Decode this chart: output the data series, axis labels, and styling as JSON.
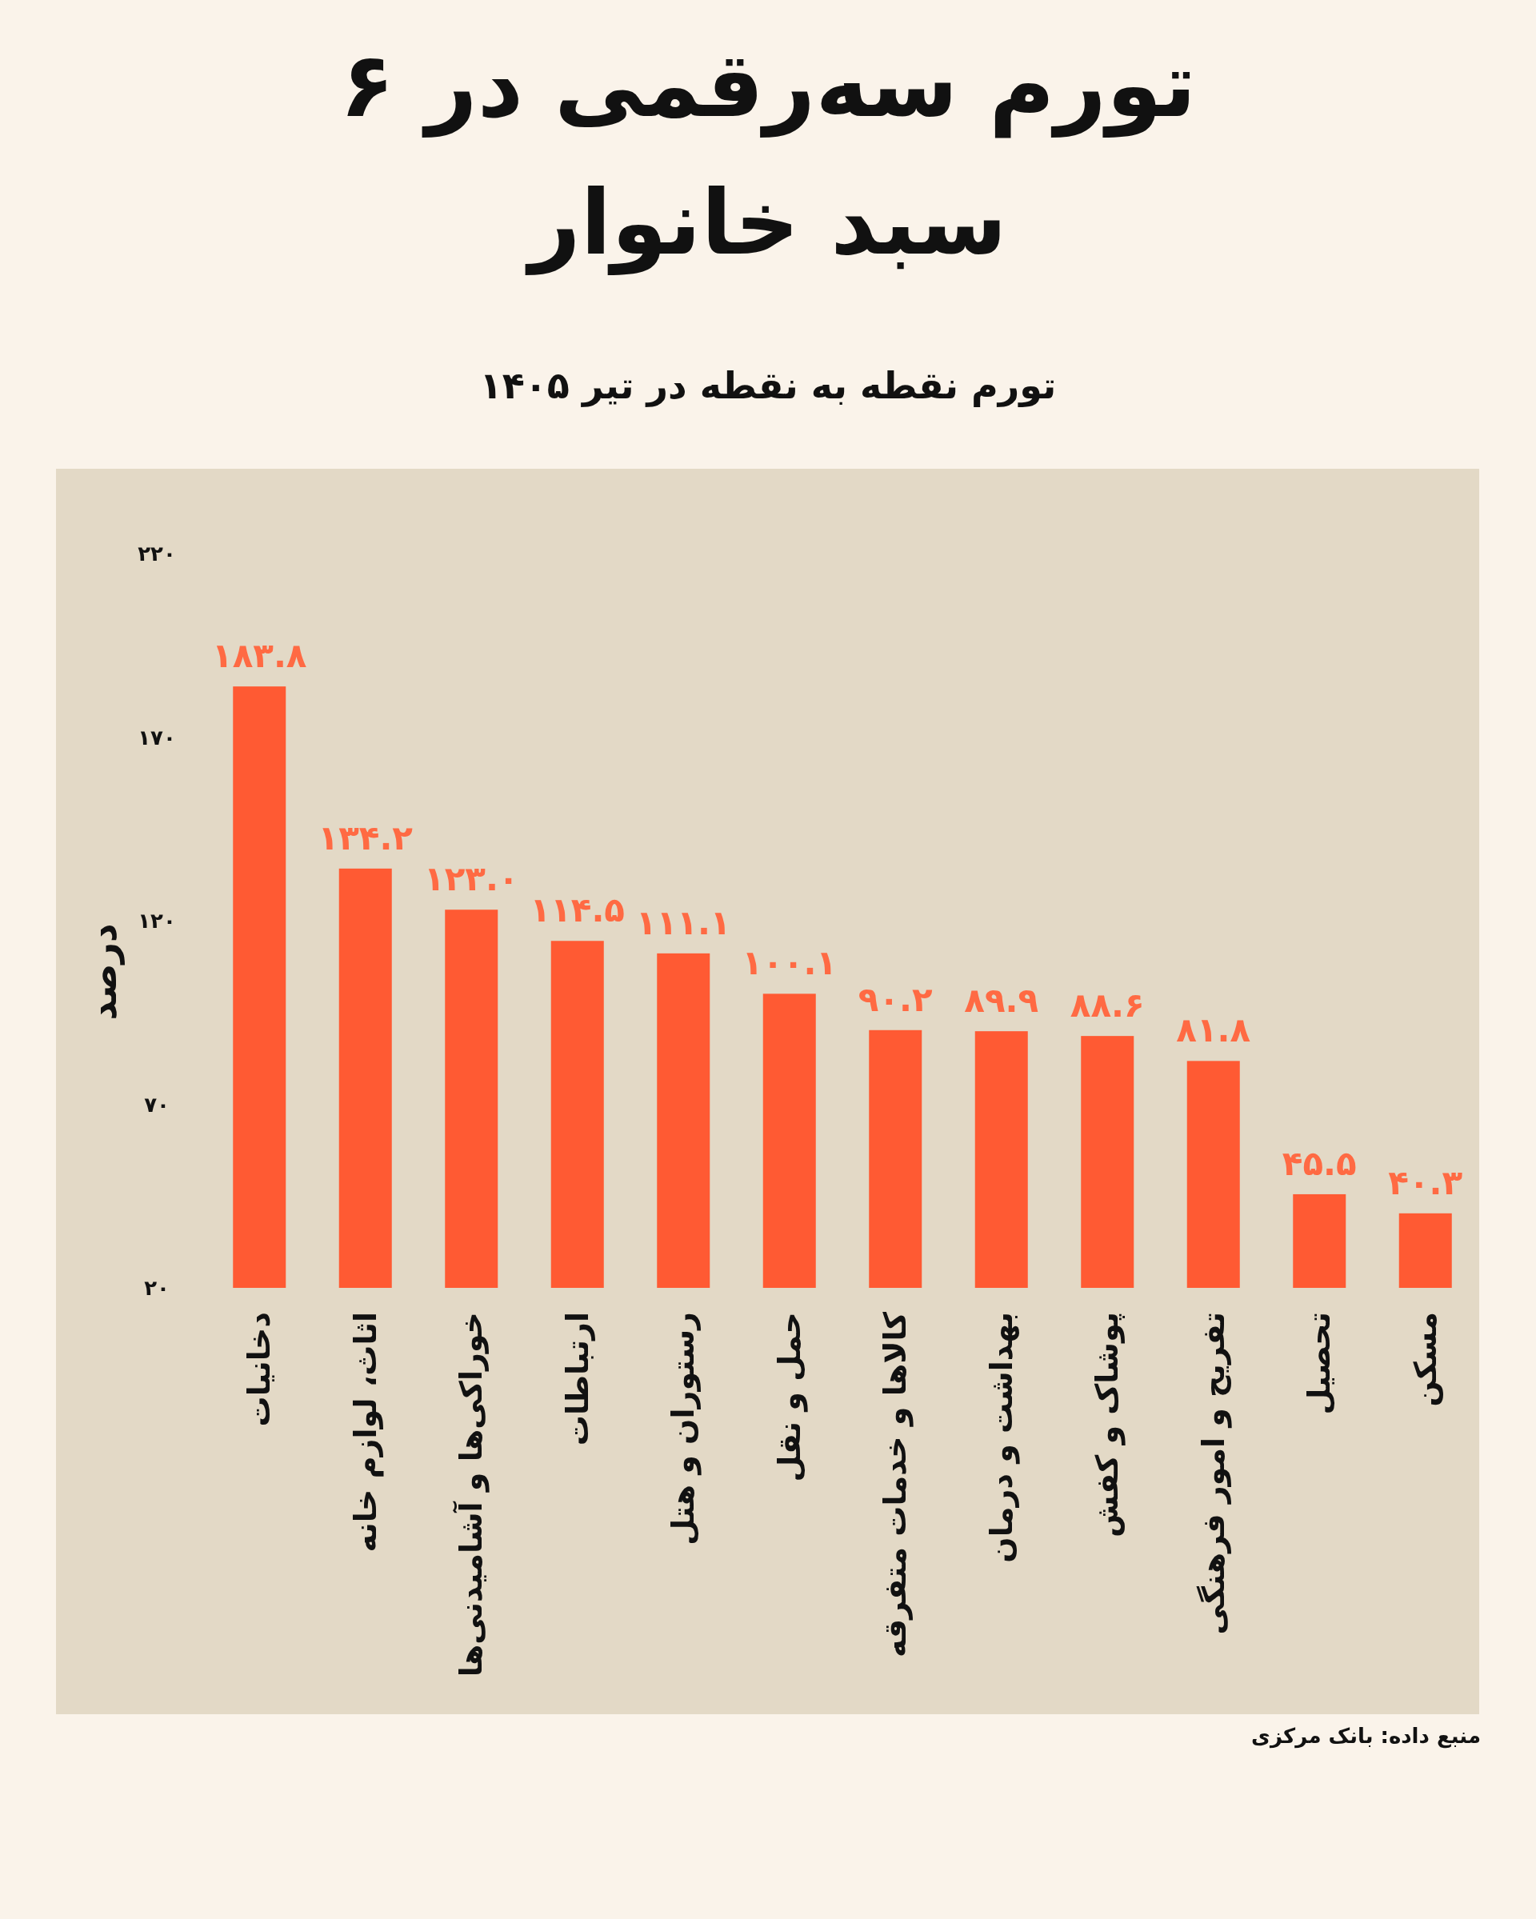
{
  "chart_data": {
    "type": "bar",
    "title": "تورم سه‌رقمی در ۶ سبد خانوار",
    "subtitle": "تورم نقطه به نقطه در تیر ۱۴۰۵",
    "ylabel": "درصد",
    "categories": [
      "دخانیات",
      "اثاث، لوازم خانه",
      "خوراکی‌ها و آشامیدنی‌ها",
      "ارتباطات",
      "رستوران و هتل",
      "حمل و نقل",
      "کالاها و خدمات متفرقه",
      "بهداشت و درمان",
      "پوشاک و کفش",
      "تفریح و امور فرهنگی",
      "تحصیل",
      "مسکن"
    ],
    "values": [
      183.8,
      134.2,
      123.0,
      114.5,
      111.1,
      100.1,
      90.2,
      89.9,
      88.6,
      81.8,
      45.5,
      40.3
    ],
    "value_labels": [
      "۱۸۳.۸",
      "۱۳۴.۲",
      "۱۲۳.۰",
      "۱۱۴.۵",
      "۱۱۱.۱",
      "۱۰۰.۱",
      "۹۰.۲",
      "۸۹.۹",
      "۸۸.۶",
      "۸۱.۸",
      "۴۵.۵",
      "۴۰.۳"
    ],
    "color": "#ff5a33",
    "ylim": [
      20,
      220
    ],
    "yticks": [
      {
        "value": 20,
        "label": "۲۰"
      },
      {
        "value": 70,
        "label": "۷۰"
      },
      {
        "value": 120,
        "label": "۱۲۰"
      },
      {
        "value": 170,
        "label": "۱۷۰"
      },
      {
        "value": 220,
        "label": "۲۲۰"
      }
    ],
    "grid": false,
    "annotations": [
      "منبع داده: بانک مرکزی"
    ]
  }
}
